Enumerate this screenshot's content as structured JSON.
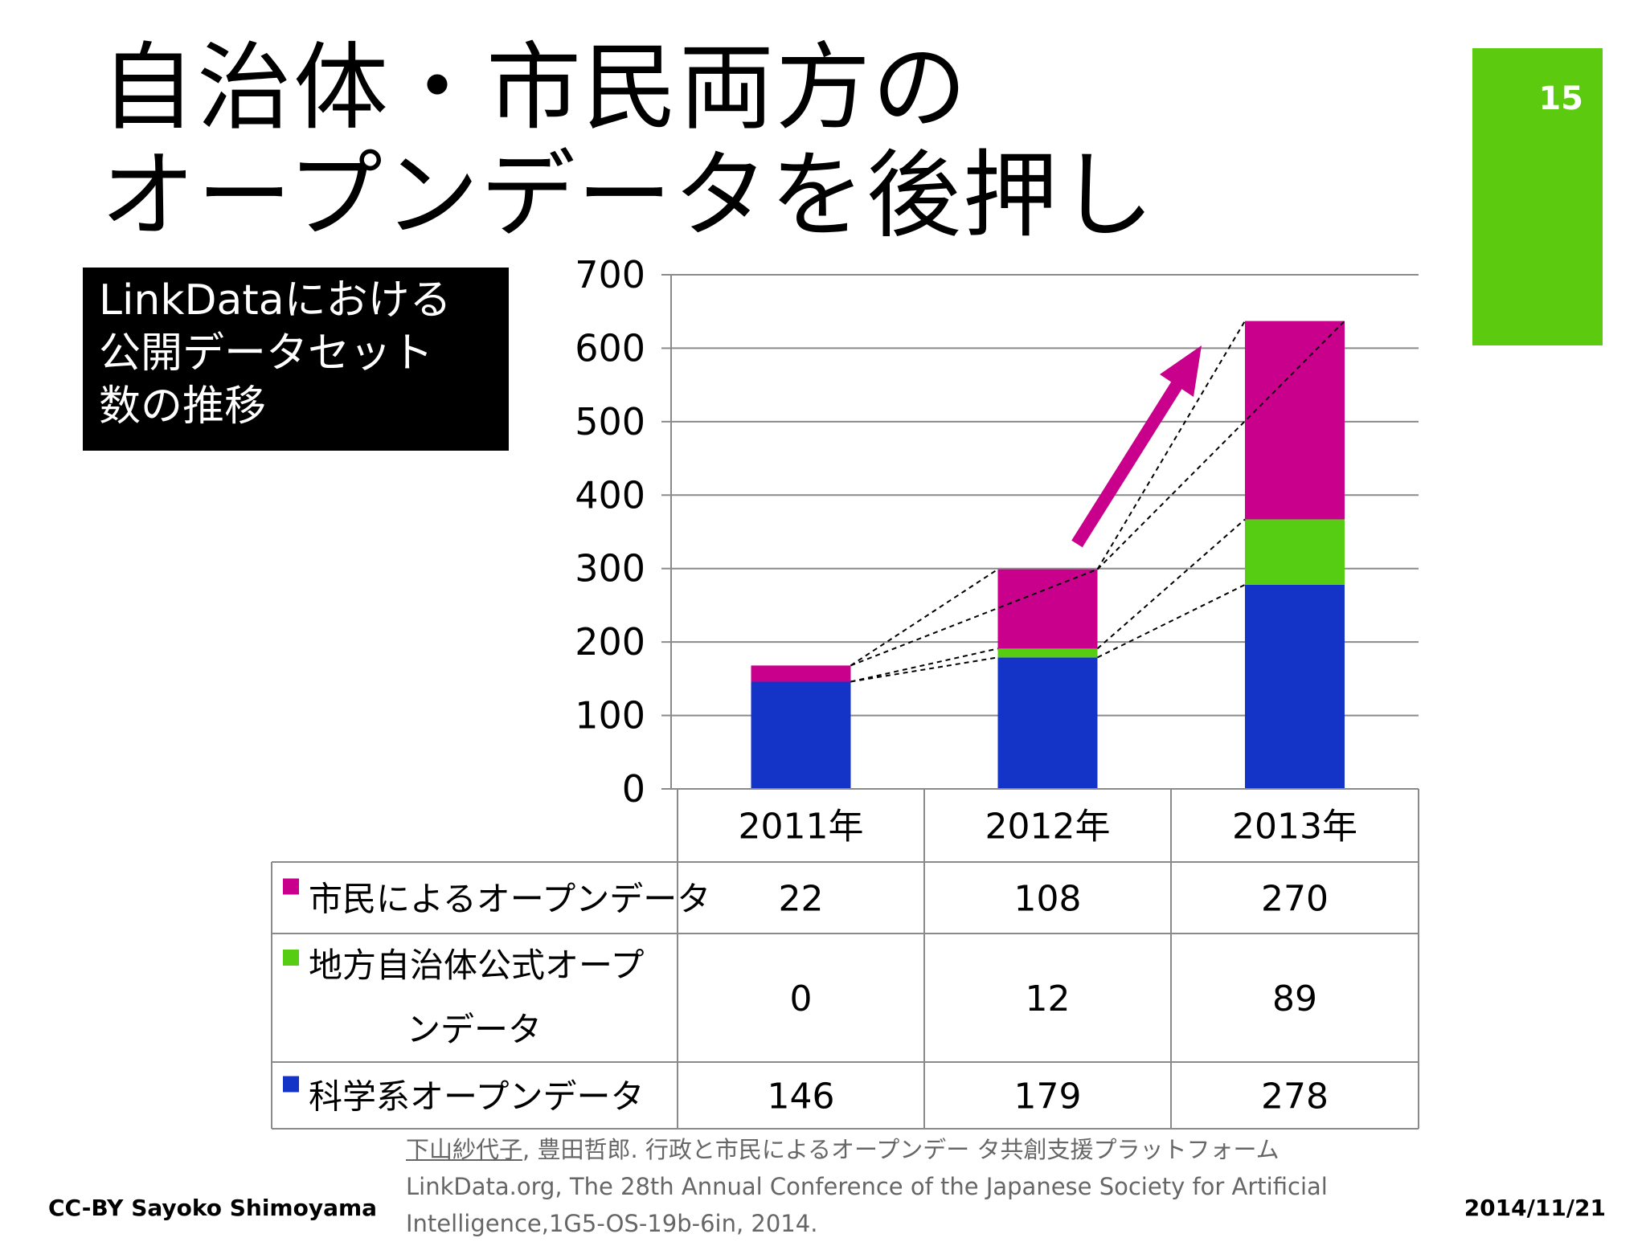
{
  "title": {
    "line1": "自治体・市民両方の",
    "line2": "オープンデータを後押し"
  },
  "slide_number": "15",
  "label_box": {
    "line1": "LinkDataにおける",
    "line2": "公開データセット",
    "line3": "数の推移"
  },
  "chart_data": {
    "type": "bar",
    "stacked": true,
    "categories": [
      "2011年",
      "2012年",
      "2013年"
    ],
    "series": [
      {
        "name": "市民によるオープンデータ",
        "values": [
          22,
          108,
          270
        ],
        "color": "#c8008c"
      },
      {
        "name": "地方自治体公式オープンデータ",
        "values": [
          0,
          12,
          89
        ],
        "color": "#56cc12"
      },
      {
        "name": "科学系オープンデータ",
        "values": [
          146,
          179,
          278
        ],
        "color": "#1434c8"
      }
    ],
    "stack_order": [
      2,
      1,
      0
    ],
    "series_display_lines": [
      [
        "市民によるオープンデータ"
      ],
      [
        "地方自治体公式オープ",
        "ンデータ"
      ],
      [
        "科学系オープンデータ"
      ]
    ],
    "ylim": [
      0,
      700
    ],
    "yticks": [
      "0",
      "100",
      "200",
      "300",
      "400",
      "500",
      "600",
      "700"
    ],
    "grid": true,
    "legend": "data-table-below",
    "annotation": "growth arrow between 2012 and 2013"
  },
  "footer": {
    "left": "CC-BY Sayoko Shimoyama",
    "right": "2014/11/21"
  },
  "citation": {
    "author": "下山紗代子",
    "line1_rest": ", 豊田哲郎. 行政と市民によるオープンデー タ共創支援プラットフォーム",
    "line2": "LinkData.org, The 28th Annual Conference of the Japanese Society for Artificial",
    "line3": "Intelligence,1G5-OS-19b-6in, 2014."
  },
  "colors": {
    "accent_green": "#5ccb10",
    "magenta": "#c8008c",
    "green": "#56cc12",
    "blue": "#1434c8"
  }
}
